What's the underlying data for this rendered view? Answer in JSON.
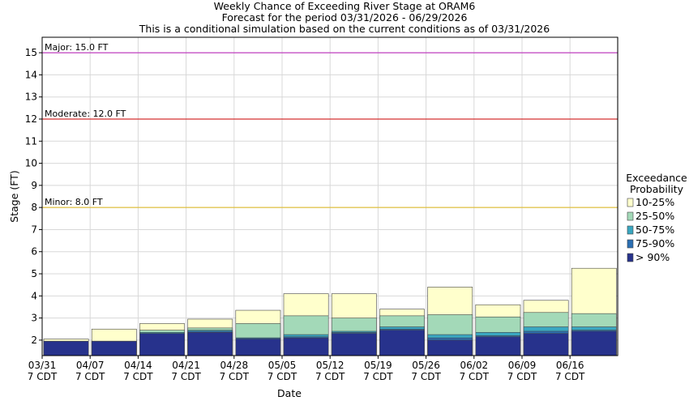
{
  "chart_data": {
    "type": "bar",
    "title_lines": [
      "Weekly Chance of Exceeding River Stage at ORAM6",
      "Forecast for the period 03/31/2026 - 06/29/2026",
      "This is a conditional simulation based on the current conditions as of 03/31/2026"
    ],
    "xlabel": "Date",
    "ylabel": "Stage (FT)",
    "ylim": [
      1.3,
      15.7
    ],
    "yticks": [
      2,
      3,
      4,
      5,
      6,
      7,
      8,
      9,
      10,
      11,
      12,
      13,
      14,
      15
    ],
    "grid": true,
    "categories": [
      [
        "03/31",
        "7 CDT"
      ],
      [
        "04/07",
        "7 CDT"
      ],
      [
        "04/14",
        "7 CDT"
      ],
      [
        "04/21",
        "7 CDT"
      ],
      [
        "04/28",
        "7 CDT"
      ],
      [
        "05/05",
        "7 CDT"
      ],
      [
        "05/12",
        "7 CDT"
      ],
      [
        "05/19",
        "7 CDT"
      ],
      [
        "05/26",
        "7 CDT"
      ],
      [
        "06/02",
        "7 CDT"
      ],
      [
        "06/09",
        "7 CDT"
      ],
      [
        "06/16",
        "7 CDT"
      ]
    ],
    "series": [
      {
        "name": "> 90%",
        "color": "#27328c",
        "values": [
          1.95,
          1.95,
          2.3,
          2.35,
          2.05,
          2.1,
          2.3,
          2.45,
          2.0,
          2.15,
          2.3,
          2.4
        ]
      },
      {
        "name": "75-90%",
        "color": "#2b6fb3",
        "values": [
          1.95,
          1.95,
          2.3,
          2.4,
          2.1,
          2.15,
          2.35,
          2.5,
          2.1,
          2.2,
          2.4,
          2.45
        ]
      },
      {
        "name": "50-75%",
        "color": "#3aa7c1",
        "values": [
          1.95,
          1.95,
          2.35,
          2.45,
          2.1,
          2.25,
          2.4,
          2.6,
          2.25,
          2.35,
          2.6,
          2.6
        ]
      },
      {
        "name": "25-50%",
        "color": "#a3d9b8",
        "values": [
          1.95,
          1.95,
          2.45,
          2.55,
          2.75,
          3.1,
          3.0,
          3.1,
          3.15,
          3.05,
          3.25,
          3.2
        ]
      },
      {
        "name": "10-25%",
        "color": "#ffffcc",
        "values": [
          2.05,
          2.5,
          2.75,
          2.95,
          3.35,
          4.1,
          4.1,
          3.4,
          4.4,
          3.6,
          3.8,
          5.25
        ]
      }
    ],
    "legend": {
      "title_lines": [
        "Exceedance",
        "Probability"
      ],
      "placement": "right",
      "entries": [
        "10-25%",
        "25-50%",
        "50-75%",
        "75-90%",
        "> 90%"
      ]
    },
    "flood_levels": [
      {
        "label": "Major: 15.0 FT",
        "value": 15.0,
        "color": "#c040c0"
      },
      {
        "label": "Moderate: 12.0 FT",
        "value": 12.0,
        "color": "#d43030"
      },
      {
        "label": "Minor: 8.0 FT",
        "value": 8.0,
        "color": "#e0c040"
      }
    ]
  }
}
